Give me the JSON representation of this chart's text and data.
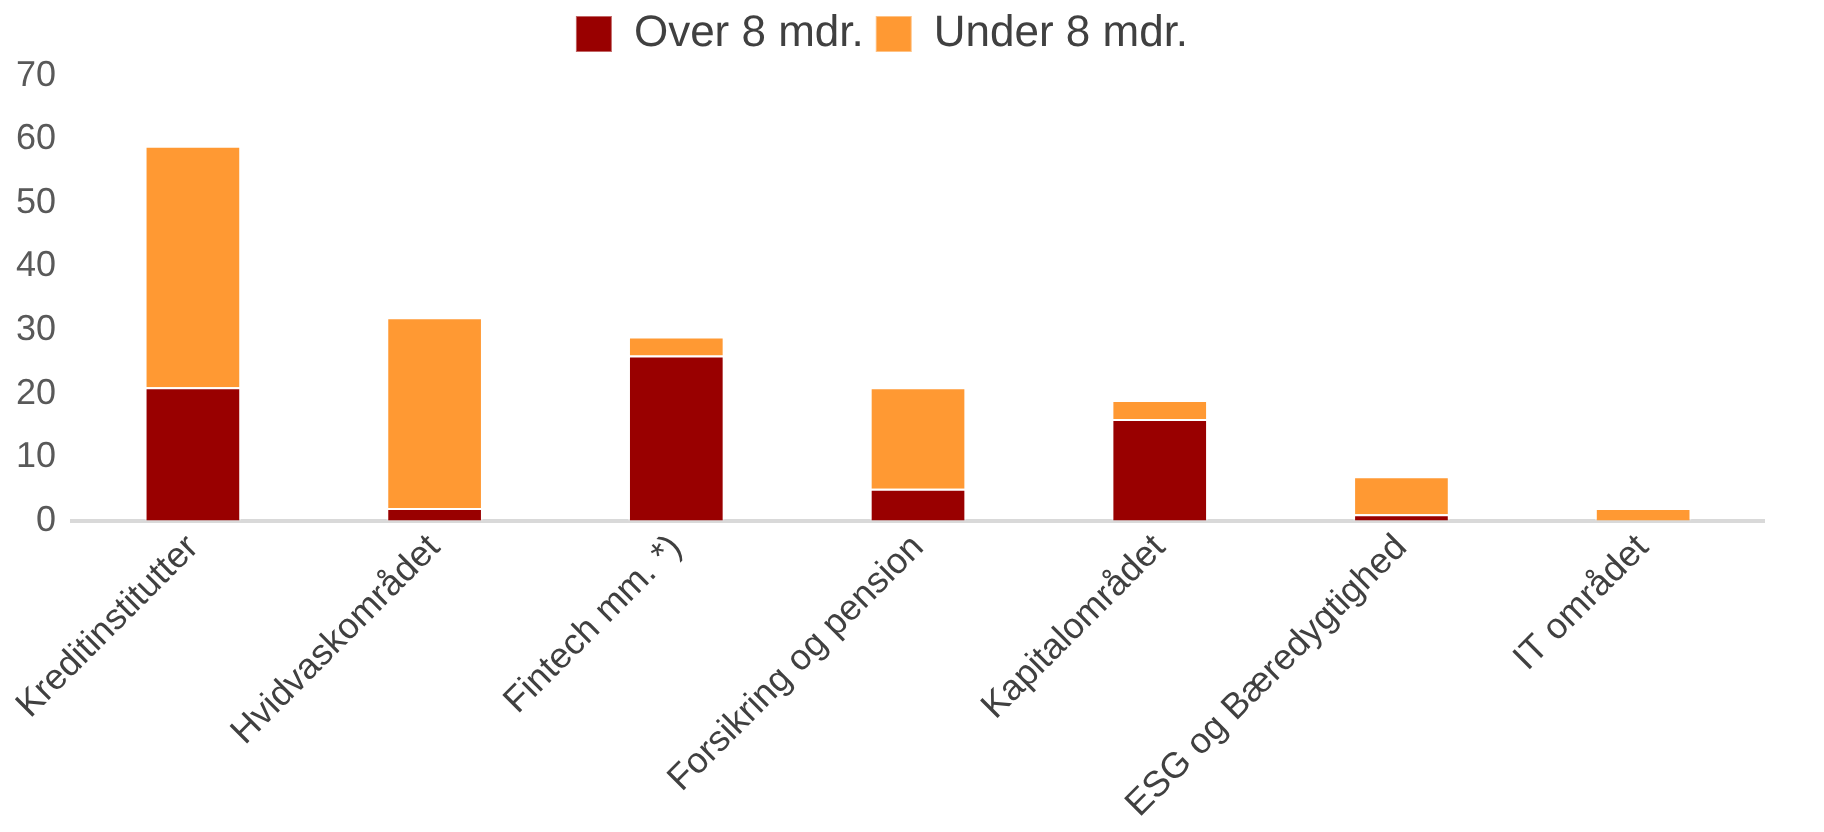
{
  "chart_data": {
    "type": "bar",
    "stacked": true,
    "categories": [
      "Kreditinstitutter",
      "Hvidvaskområdet",
      "Fintech mm. *)",
      "Forsikring og pension",
      "Kapitalområdet",
      "ESG og Bæredygtighed",
      "IT området"
    ],
    "series": [
      {
        "name": "Over 8 mdr.",
        "color": "#990000",
        "values": [
          21,
          2,
          26,
          5,
          16,
          1,
          0
        ]
      },
      {
        "name": "Under 8 mdr.",
        "color": "#ff9933",
        "values": [
          38,
          30,
          3,
          16,
          3,
          6,
          2
        ]
      }
    ],
    "ylim": [
      0,
      70
    ],
    "yticks": [
      0,
      10,
      20,
      30,
      40,
      50,
      60,
      70
    ],
    "grid": false,
    "legend": "top"
  }
}
